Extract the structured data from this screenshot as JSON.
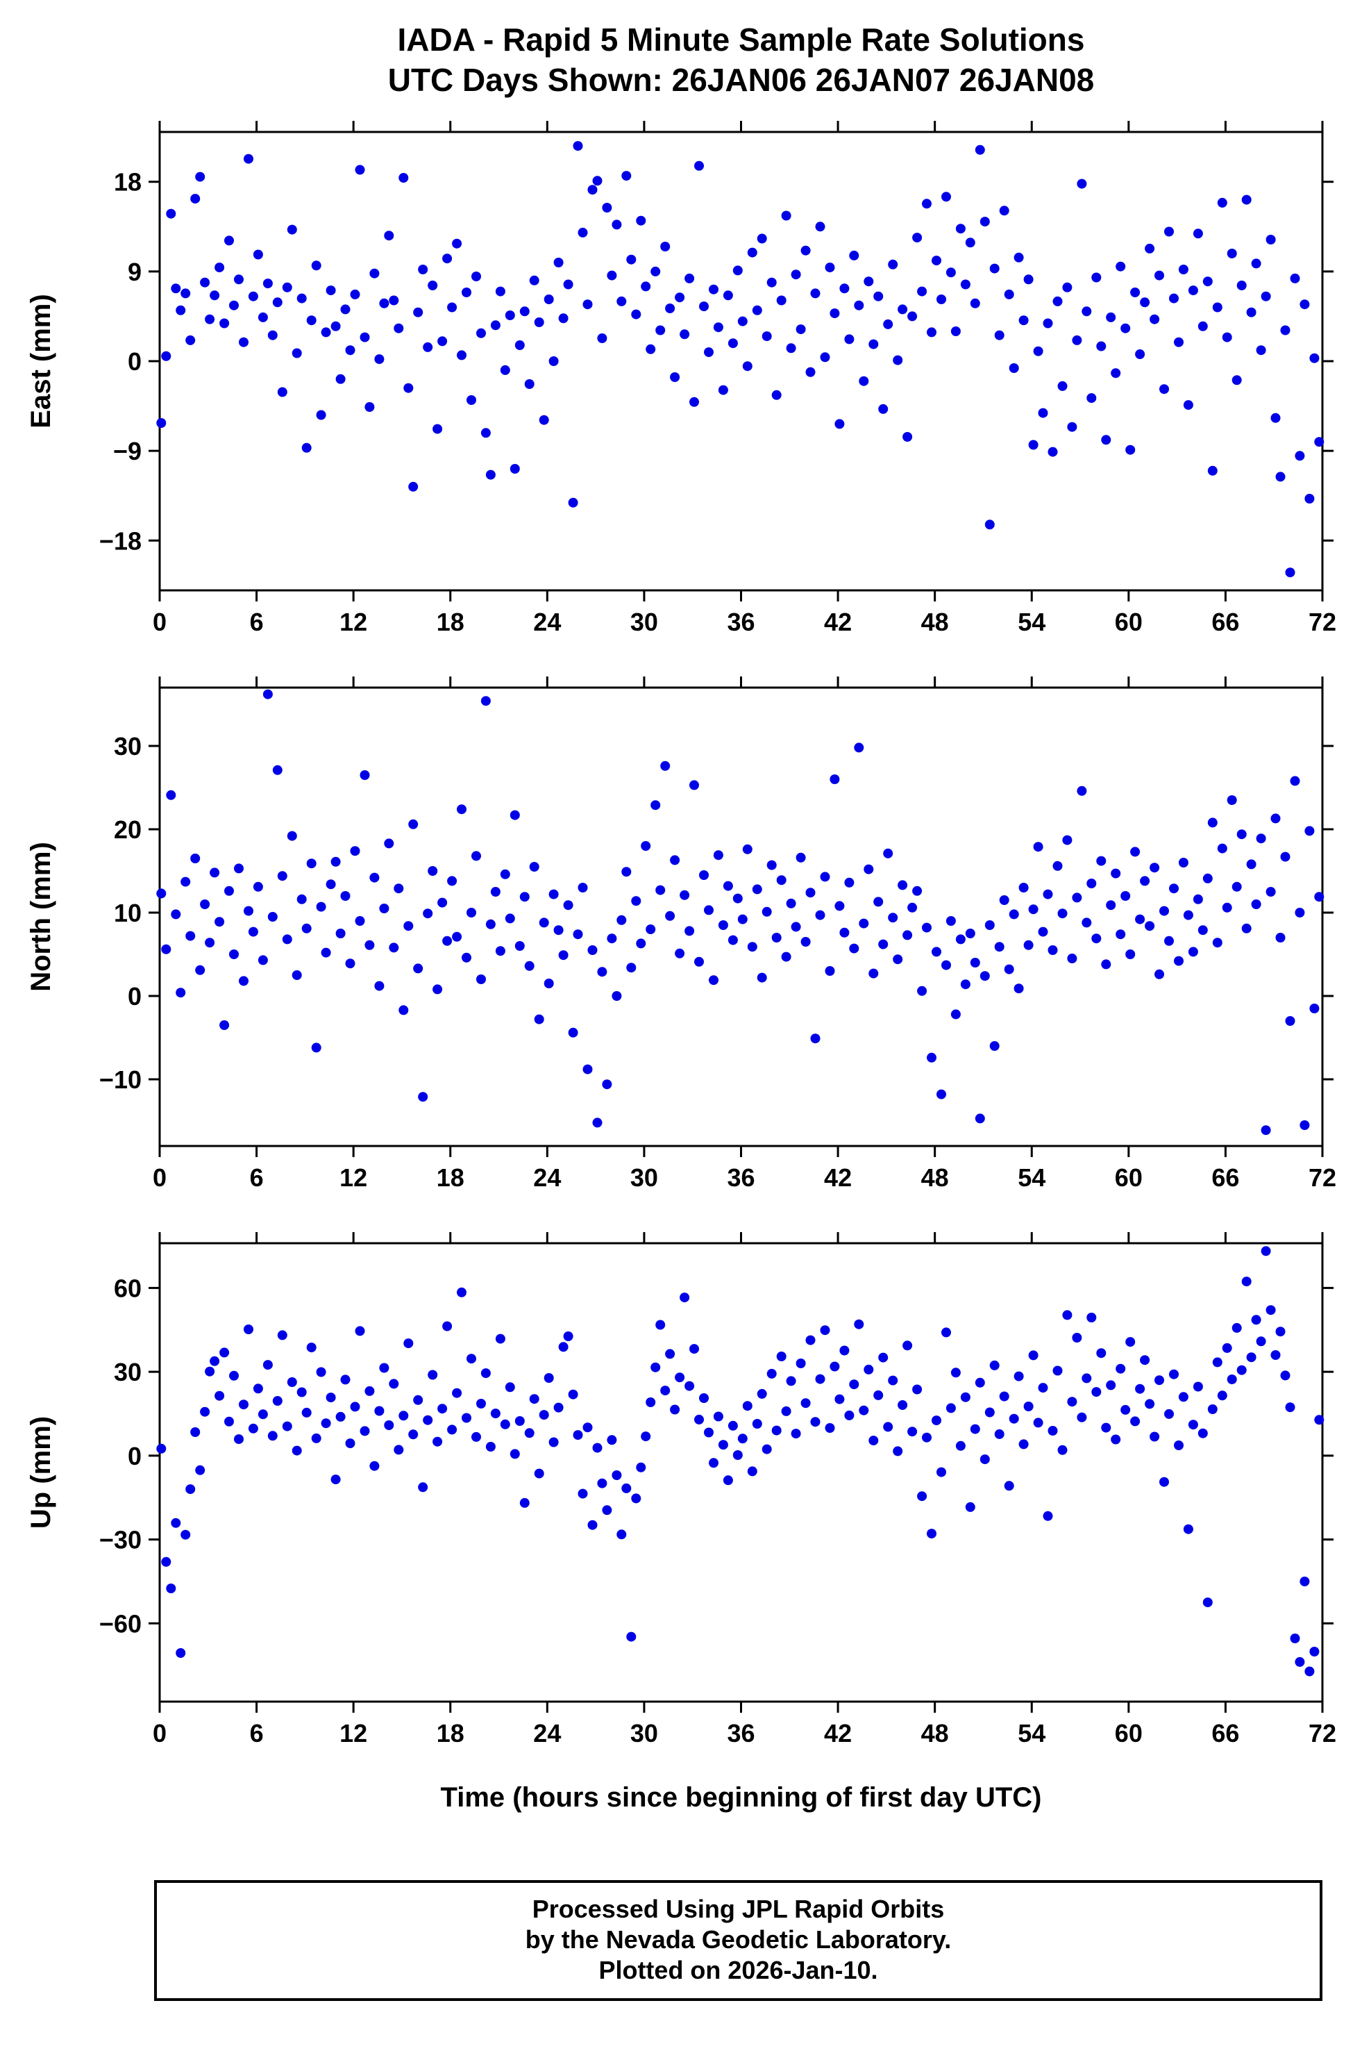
{
  "title": {
    "line1": "IADA - Rapid 5 Minute Sample Rate Solutions",
    "line2": "UTC Days Shown:  26JAN06 26JAN07 26JAN08"
  },
  "xlabel": "Time (hours since beginning of first day UTC)",
  "footer": {
    "line1": "Processed Using JPL Rapid Orbits",
    "line2": "by the Nevada Geodetic Laboratory.",
    "line3": "Plotted on 2026-Jan-10."
  },
  "colors": {
    "point": "#0000e6",
    "axis": "#000000",
    "background": "#ffffff"
  },
  "chart_data": [
    {
      "type": "scatter",
      "ylabel": "East (mm)",
      "xlim": [
        0,
        72
      ],
      "ylim": [
        -23,
        23
      ],
      "xticks": [
        0,
        6,
        12,
        18,
        24,
        30,
        36,
        42,
        48,
        54,
        60,
        66,
        72
      ],
      "yticks": [
        -18,
        -9,
        0,
        9,
        18
      ],
      "x_start": 0.1,
      "x_step": 0.3,
      "y": [
        -6.2,
        0.5,
        14.8,
        7.3,
        5.1,
        6.8,
        2.1,
        16.3,
        18.5,
        7.9,
        4.2,
        6.6,
        9.4,
        3.8,
        12.1,
        5.6,
        8.2,
        1.9,
        20.3,
        6.5,
        10.7,
        4.4,
        7.8,
        2.6,
        5.9,
        -3.1,
        7.4,
        13.2,
        0.8,
        6.3,
        -8.7,
        4.1,
        9.6,
        -5.4,
        2.9,
        7.1,
        3.5,
        -1.8,
        5.2,
        1.1,
        6.7,
        19.2,
        2.4,
        -4.6,
        8.8,
        0.2,
        5.8,
        12.6,
        6.1,
        3.3,
        18.4,
        -2.7,
        -12.6,
        4.9,
        9.2,
        1.4,
        7.6,
        -6.8,
        2.0,
        10.3,
        5.4,
        11.8,
        0.6,
        6.9,
        -3.9,
        8.5,
        2.8,
        -7.2,
        -11.4,
        3.6,
        7.0,
        -0.9,
        4.6,
        -10.8,
        1.6,
        5.0,
        -2.3,
        8.1,
        3.9,
        -5.9,
        6.2,
        0.0,
        9.9,
        4.3,
        7.7,
        -14.2,
        21.6,
        12.9,
        5.7,
        17.2,
        18.1,
        2.3,
        15.4,
        8.6,
        13.7,
        6.0,
        18.6,
        10.2,
        4.7,
        14.1,
        7.5,
        1.2,
        9.0,
        3.1,
        11.5,
        5.3,
        -1.6,
        6.4,
        2.7,
        8.3,
        -4.1,
        19.6,
        5.5,
        0.9,
        7.2,
        3.4,
        -2.9,
        6.6,
        1.8,
        9.1,
        4.0,
        -0.5,
        10.9,
        5.1,
        12.3,
        2.5,
        7.9,
        -3.4,
        6.1,
        14.6,
        1.3,
        8.7,
        3.2,
        11.1,
        -1.1,
        6.8,
        13.5,
        0.4,
        9.4,
        4.8,
        -6.3,
        7.3,
        2.2,
        10.6,
        5.6,
        -2.0,
        8.0,
        1.7,
        6.5,
        -4.8,
        3.7,
        9.7,
        0.1,
        5.2,
        -7.6,
        4.5,
        12.4,
        7.0,
        15.8,
        2.9,
        10.1,
        6.2,
        16.5,
        8.9,
        3.0,
        13.3,
        7.7,
        11.9,
        5.8,
        21.2,
        14.0,
        -16.4,
        9.3,
        2.6,
        15.1,
        6.7,
        -0.7,
        10.4,
        4.1,
        8.2,
        -8.4,
        1.0,
        -5.2,
        3.8,
        -9.1,
        6.0,
        -2.5,
        7.4,
        -6.6,
        2.1,
        17.8,
        5.0,
        -3.7,
        8.4,
        1.5,
        -7.9,
        4.4,
        -1.2,
        9.5,
        3.3,
        -8.9,
        6.9,
        0.7,
        5.9,
        11.3,
        4.2,
        8.6,
        -2.8,
        13.0,
        6.3,
        1.9,
        9.2,
        -4.4,
        7.1,
        12.8,
        3.5,
        8.0,
        -11.0,
        5.4,
        15.9,
        2.4,
        10.8,
        -1.9,
        7.6,
        16.2,
        4.9,
        9.8,
        1.1,
        6.5,
        12.2,
        -5.7,
        -11.6,
        3.1,
        -21.2,
        8.3,
        -9.5,
        5.7,
        -13.8,
        0.3,
        -8.1
      ]
    },
    {
      "type": "scatter",
      "ylabel": "North (mm)",
      "xlim": [
        0,
        72
      ],
      "ylim": [
        -18,
        37
      ],
      "xticks": [
        0,
        6,
        12,
        18,
        24,
        30,
        36,
        42,
        48,
        54,
        60,
        66,
        72
      ],
      "yticks": [
        -10,
        0,
        10,
        20,
        30
      ],
      "x_start": 0.1,
      "x_step": 0.3,
      "y": [
        12.3,
        5.6,
        24.1,
        9.8,
        0.4,
        13.7,
        7.2,
        16.5,
        3.1,
        11.0,
        6.4,
        14.8,
        8.9,
        -3.5,
        12.6,
        5.0,
        15.3,
        1.8,
        10.2,
        7.7,
        13.1,
        4.3,
        36.2,
        9.5,
        27.1,
        14.4,
        6.8,
        19.2,
        2.5,
        11.6,
        8.1,
        15.9,
        -6.2,
        10.7,
        5.2,
        13.4,
        16.1,
        7.5,
        12.0,
        3.9,
        17.4,
        9.0,
        26.5,
        6.1,
        14.2,
        1.2,
        10.5,
        18.3,
        5.8,
        12.9,
        -1.7,
        8.4,
        20.6,
        3.3,
        -12.1,
        9.9,
        15.0,
        0.8,
        11.2,
        6.6,
        13.8,
        7.1,
        22.4,
        4.6,
        10.0,
        16.8,
        2.0,
        35.4,
        8.6,
        12.5,
        5.4,
        14.6,
        9.3,
        21.7,
        6.0,
        11.9,
        3.6,
        15.5,
        -2.8,
        8.8,
        1.5,
        12.2,
        7.9,
        4.9,
        10.9,
        -4.4,
        7.4,
        13.0,
        -8.8,
        5.5,
        -15.2,
        2.9,
        -10.6,
        6.9,
        0.0,
        9.1,
        14.9,
        3.4,
        11.4,
        6.3,
        18.0,
        8.0,
        22.9,
        12.7,
        27.6,
        9.6,
        16.3,
        5.1,
        12.1,
        7.8,
        25.3,
        4.1,
        14.5,
        10.3,
        1.9,
        16.9,
        8.5,
        13.2,
        6.7,
        11.7,
        9.2,
        17.6,
        5.9,
        12.8,
        2.2,
        10.1,
        15.7,
        7.0,
        13.9,
        4.7,
        11.1,
        8.3,
        16.6,
        6.5,
        12.4,
        -5.1,
        9.7,
        14.3,
        3.0,
        26.0,
        10.8,
        7.6,
        13.6,
        5.7,
        29.8,
        8.7,
        15.2,
        2.7,
        11.3,
        6.2,
        17.1,
        9.4,
        4.4,
        13.3,
        7.3,
        10.6,
        12.6,
        0.6,
        8.2,
        -7.4,
        5.3,
        -11.8,
        3.7,
        9.0,
        -2.2,
        6.8,
        1.4,
        7.5,
        4.0,
        -14.7,
        2.4,
        8.5,
        -6.0,
        5.9,
        11.5,
        3.2,
        9.8,
        0.9,
        13.0,
        6.1,
        10.4,
        17.9,
        7.7,
        12.2,
        5.5,
        15.6,
        9.9,
        18.7,
        4.5,
        11.8,
        24.6,
        8.8,
        13.5,
        6.9,
        16.2,
        3.8,
        10.9,
        14.7,
        7.4,
        12.0,
        5.0,
        17.3,
        9.2,
        13.8,
        8.4,
        15.4,
        2.6,
        10.2,
        6.6,
        12.9,
        4.2,
        16.0,
        9.7,
        5.3,
        11.6,
        7.9,
        14.1,
        20.8,
        6.4,
        17.7,
        10.6,
        23.5,
        13.1,
        19.4,
        8.1,
        15.8,
        11.0,
        18.9,
        -16.1,
        12.5,
        21.3,
        7.0,
        16.7,
        -3.0,
        25.8,
        10.0,
        -15.5,
        19.8,
        -1.5,
        11.9
      ]
    },
    {
      "type": "scatter",
      "ylabel": "Up (mm)",
      "xlim": [
        0,
        72
      ],
      "ylim": [
        -88,
        76
      ],
      "xticks": [
        0,
        6,
        12,
        18,
        24,
        30,
        36,
        42,
        48,
        54,
        60,
        66,
        72
      ],
      "yticks": [
        -60,
        -30,
        0,
        30,
        60
      ],
      "x_start": 0.1,
      "x_step": 0.3,
      "y": [
        2.5,
        -38.0,
        -47.5,
        -24.1,
        -70.6,
        -28.3,
        -12.0,
        8.4,
        -5.2,
        15.7,
        30.1,
        33.8,
        21.4,
        36.9,
        12.2,
        28.6,
        5.9,
        18.3,
        45.2,
        9.7,
        24.0,
        14.8,
        32.5,
        7.1,
        19.6,
        43.1,
        10.5,
        26.3,
        1.8,
        22.7,
        15.4,
        38.7,
        6.2,
        29.9,
        11.6,
        20.8,
        -8.5,
        13.9,
        27.2,
        4.4,
        17.5,
        44.6,
        8.8,
        23.1,
        -3.7,
        16.0,
        31.4,
        10.9,
        25.7,
        2.1,
        14.3,
        40.2,
        7.6,
        19.9,
        -11.3,
        12.7,
        28.9,
        5.0,
        16.8,
        46.3,
        9.3,
        22.4,
        58.4,
        13.5,
        34.7,
        6.7,
        18.6,
        29.5,
        3.2,
        15.1,
        41.8,
        11.2,
        24.5,
        0.6,
        12.4,
        -16.9,
        8.1,
        20.3,
        -6.4,
        14.6,
        27.8,
        4.8,
        17.2,
        38.9,
        42.7,
        21.9,
        7.4,
        -13.6,
        10.1,
        -24.8,
        2.8,
        -9.9,
        -19.5,
        5.6,
        -7.0,
        -28.2,
        -11.7,
        -64.8,
        -15.3,
        -4.2,
        6.9,
        19.1,
        31.6,
        46.8,
        23.3,
        36.4,
        16.5,
        28.0,
        56.6,
        24.9,
        38.2,
        12.9,
        20.6,
        8.3,
        -2.6,
        14.0,
        3.9,
        -8.8,
        10.7,
        0.2,
        6.1,
        17.8,
        -5.6,
        11.4,
        22.1,
        2.3,
        29.3,
        9.0,
        35.5,
        15.9,
        26.7,
        7.9,
        33.0,
        18.8,
        41.3,
        12.1,
        27.4,
        44.9,
        9.9,
        31.9,
        20.2,
        37.6,
        14.4,
        25.5,
        47.0,
        16.2,
        30.8,
        5.4,
        21.6,
        35.1,
        10.3,
        26.9,
        1.6,
        18.1,
        39.4,
        8.6,
        23.7,
        -14.5,
        6.5,
        -27.9,
        12.6,
        -5.9,
        44.1,
        17.0,
        29.7,
        3.5,
        20.9,
        -18.4,
        9.5,
        26.1,
        -1.3,
        15.5,
        32.3,
        7.7,
        21.2,
        -10.8,
        13.2,
        28.4,
        4.1,
        17.6,
        35.9,
        11.8,
        24.3,
        -21.6,
        8.9,
        30.4,
        2.0,
        50.3,
        19.3,
        42.2,
        13.7,
        27.7,
        49.4,
        22.8,
        36.7,
        10.0,
        25.2,
        5.8,
        31.1,
        16.4,
        40.7,
        12.3,
        23.9,
        34.2,
        18.5,
        6.8,
        27.0,
        -9.4,
        14.9,
        29.1,
        3.7,
        21.0,
        -26.3,
        11.1,
        24.7,
        8.0,
        -52.5,
        16.6,
        33.4,
        21.5,
        38.5,
        27.3,
        45.7,
        30.6,
        62.3,
        35.2,
        48.6,
        40.9,
        73.2,
        52.1,
        36.0,
        44.4,
        28.7,
        17.3,
        -65.4,
        -73.8,
        -45.0,
        -77.2,
        -70.1,
        12.8
      ]
    }
  ]
}
